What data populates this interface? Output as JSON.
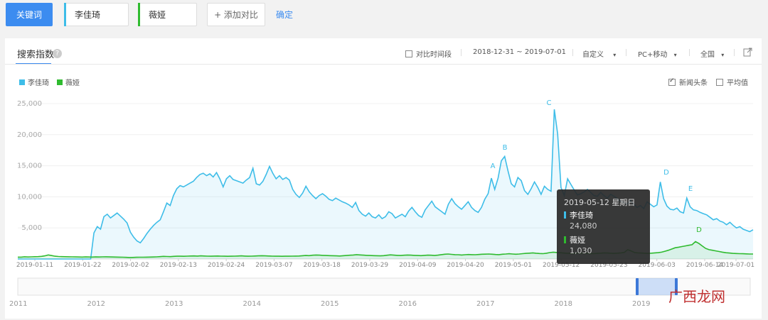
{
  "topbar": {
    "keyword_button": "关键词",
    "keyword_1": "李佳琦",
    "keyword_2": "薇娅",
    "add_compare": "+ 添加对比",
    "confirm": "确定"
  },
  "panel": {
    "tab_label": "搜索指数",
    "help": "?",
    "compare_period": "对比时间段",
    "date_range": "2018-12-31 ~ 2019-07-01",
    "custom": "自定义",
    "device": "PC+移动",
    "region": "全国",
    "news_headline": "新闻头条",
    "average": "平均值"
  },
  "legend": [
    {
      "name": "李佳琦",
      "color": "#3ebde8"
    },
    {
      "name": "薇娅",
      "color": "#2fbb2f"
    }
  ],
  "tooltip": {
    "date": "2019-05-12 星期日",
    "name1": "李佳琦",
    "val1": "24,080",
    "name2": "薇娅",
    "val2": "1,030"
  },
  "watermark": "广西龙网",
  "chart_data": {
    "type": "area",
    "y_ticks": [
      "25,000",
      "20,000",
      "15,000",
      "10,000",
      "5,000"
    ],
    "x_ticks": [
      "2019-01-11",
      "2019-01-22",
      "2019-02-02",
      "2019-02-13",
      "2019-02-24",
      "2019-03-07",
      "2019-03-18",
      "2019-03-29",
      "2019-04-09",
      "2019-04-20",
      "2019-05-01",
      "2019-05-12",
      "2019-05-23",
      "2019-06-03",
      "2019-06-14",
      "2019-07-01"
    ],
    "ylim": [
      0,
      25000
    ],
    "annotations": [
      "A",
      "B",
      "C",
      "D",
      "E",
      "D"
    ],
    "overview_years": [
      "2011",
      "2012",
      "2013",
      "2014",
      "2015",
      "2016",
      "2017",
      "2018",
      "2019"
    ],
    "series": [
      {
        "name": "李佳琦",
        "color": "#3ebde8",
        "values": [
          0,
          0,
          0,
          0,
          0,
          0,
          0,
          0,
          0,
          0,
          0,
          0,
          0,
          0,
          0,
          0,
          0,
          0,
          0,
          0,
          0,
          0,
          0,
          4200,
          5200,
          4800,
          6800,
          7200,
          6600,
          7000,
          7400,
          6900,
          6400,
          5800,
          4300,
          3500,
          2900,
          2600,
          3300,
          4100,
          4800,
          5400,
          5900,
          6300,
          7600,
          9000,
          8600,
          10200,
          11300,
          11800,
          11600,
          11900,
          12200,
          12500,
          13100,
          13600,
          13800,
          13400,
          13700,
          13200,
          13900,
          12900,
          11600,
          12900,
          13400,
          12800,
          12600,
          12400,
          12200,
          12700,
          13100,
          14600,
          12100,
          11900,
          12500,
          13600,
          14900,
          13800,
          12900,
          13400,
          12800,
          13100,
          12700,
          11200,
          10400,
          9900,
          10600,
          11700,
          10800,
          10200,
          9700,
          10200,
          10500,
          10100,
          9600,
          9400,
          9800,
          9500,
          9200,
          9000,
          8700,
          8300,
          9100,
          7800,
          7200,
          6900,
          7400,
          6800,
          6600,
          7100,
          6500,
          6800,
          7600,
          7300,
          6600,
          6900,
          7200,
          6800,
          7700,
          8300,
          7600,
          7000,
          6700,
          7900,
          8600,
          9300,
          8400,
          8000,
          7600,
          7200,
          8800,
          9700,
          8900,
          8400,
          8000,
          8600,
          9200,
          8300,
          7800,
          7500,
          8300,
          9600,
          10500,
          13000,
          11200,
          13000,
          15800,
          16500,
          14200,
          12100,
          11600,
          13100,
          12600,
          11000,
          10400,
          11300,
          12400,
          11500,
          10400,
          11700,
          11200,
          10900,
          24080,
          20100,
          11500,
          10200,
          12900,
          12000,
          11100,
          10300,
          10500,
          10800,
          11200,
          10700,
          10200,
          10100,
          10700,
          10200,
          9800,
          10400,
          10100,
          9700,
          9300,
          9100,
          8800,
          9400,
          8800,
          8300,
          8600,
          8100,
          9200,
          8800,
          8400,
          8700,
          12400,
          9700,
          8500,
          8000,
          7900,
          8200,
          7600,
          7400,
          9800,
          8400,
          7900,
          7800,
          7500,
          7300,
          7100,
          6700,
          6300,
          6500,
          6100,
          5900,
          5500,
          5900,
          5400,
          5000,
          5200,
          4800,
          4600,
          4400,
          4700
        ]
      },
      {
        "name": "薇娅",
        "color": "#2fbb2f",
        "values": [
          300,
          300,
          350,
          320,
          340,
          360,
          380,
          420,
          500,
          650,
          550,
          450,
          400,
          380,
          360,
          350,
          340,
          330,
          320,
          310,
          330,
          320,
          310,
          330,
          320,
          340,
          350,
          330,
          320,
          310,
          300,
          280,
          260,
          240,
          250,
          270,
          290,
          280,
          300,
          310,
          320,
          340,
          380,
          420,
          400,
          380,
          420,
          450,
          440,
          430,
          460,
          480,
          490,
          470,
          500,
          480,
          460,
          450,
          470,
          480,
          460,
          450,
          430,
          440,
          460,
          480,
          500,
          470,
          450,
          460,
          480,
          500,
          520,
          500,
          480,
          460,
          450,
          440,
          430,
          440,
          450,
          460,
          470,
          480,
          520,
          560,
          540,
          600,
          640,
          620,
          580,
          560,
          540,
          520,
          500,
          480,
          520,
          560,
          600,
          640,
          700,
          650,
          620,
          580,
          560,
          540,
          520,
          500,
          540,
          600,
          660,
          620,
          580,
          560,
          600,
          640,
          620,
          580,
          560,
          540,
          580,
          620,
          600,
          560,
          620,
          700,
          760,
          800,
          740,
          700,
          680,
          640,
          680,
          720,
          700,
          680,
          720,
          760,
          780,
          800,
          760,
          720,
          700,
          760,
          800,
          840,
          800,
          760,
          800,
          860,
          900,
          940,
          980,
          920,
          880,
          860,
          920,
          1030,
          1100,
          1050,
          1000,
          960,
          920,
          900,
          880,
          920,
          960,
          940,
          900,
          880,
          860,
          900,
          940,
          980,
          960,
          920,
          900,
          940,
          980,
          1060,
          1500,
          1300,
          1040,
          980,
          960,
          920,
          900,
          940,
          980,
          1020,
          1100,
          1240,
          1400,
          1600,
          1800,
          1900,
          2000,
          2100,
          2200,
          2300,
          2800,
          2500,
          2100,
          1700,
          1500,
          1400,
          1300,
          1200,
          1100,
          1000,
          960,
          900,
          880,
          860,
          840,
          820,
          800,
          800
        ]
      }
    ]
  }
}
